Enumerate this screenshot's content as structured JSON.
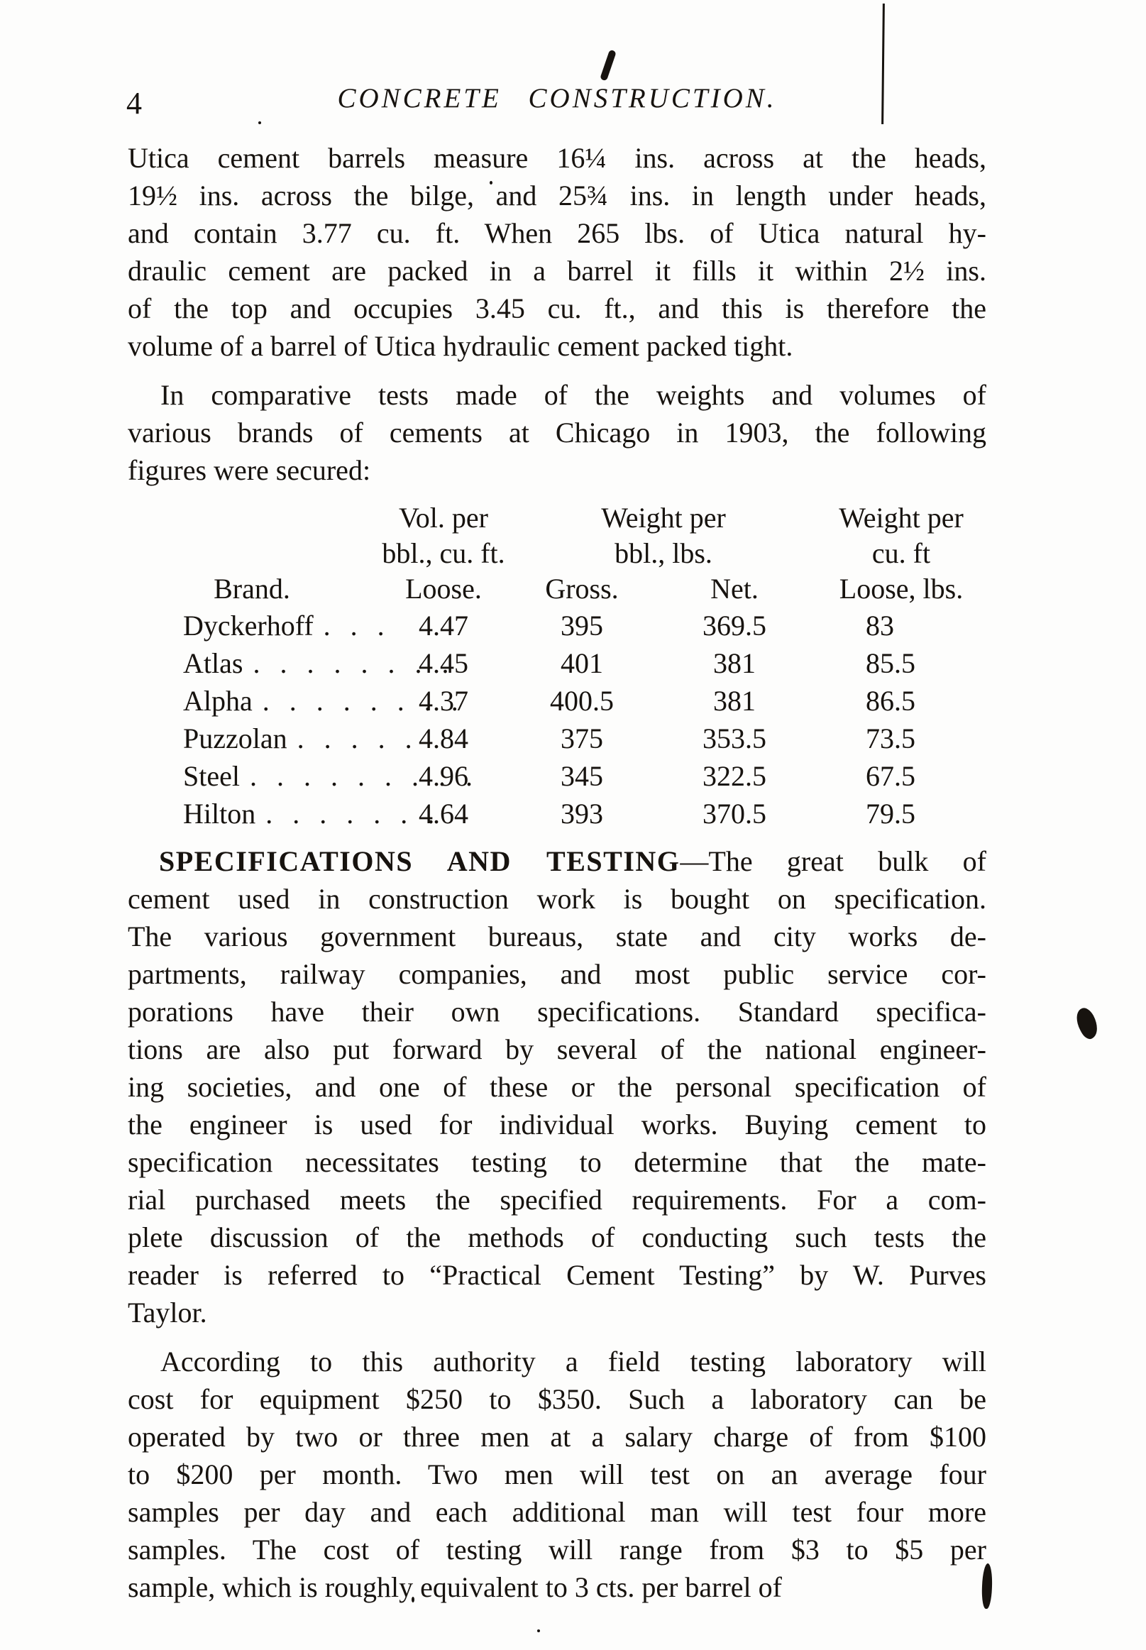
{
  "page": {
    "number": "4",
    "header": "CONCRETE CONSTRUCTION."
  },
  "content": {
    "para_utica_lines": [
      "Utica cement barrels measure 16¼ ins. across at the heads,",
      "19½ ins. across the bilge, and 25¾ ins. in length under heads,",
      "and contain 3.77 cu. ft.  When 265 lbs. of Utica natural hy-",
      "draulic cement are packed in a barrel it fills it within 2½ ins.",
      "of the top and occupies 3.45 cu. ft., and this is therefore the",
      "volume of a barrel of Utica hydraulic cement packed tight."
    ],
    "para_tests_lines": [
      "In comparative tests made of the weights and volumes of",
      "various brands of cements at Chicago in 1903, the following",
      "figures were secured:"
    ],
    "spec_heading": "SPECIFICATIONS AND TESTING",
    "spec_first_line_rest": "—The great bulk of",
    "para_spec_lines": [
      "cement used in construction work is bought on specification.",
      "The various government bureaus, state and city works de-",
      "partments, railway companies, and most public service cor-",
      "porations have their own specifications.  Standard specifica-",
      "tions are also put forward by several of the national engineer-",
      "ing societies, and one of these or the personal specification of",
      "the engineer is used for individual works.  Buying cement to",
      "specification necessitates testing to determine that the mate-",
      "rial purchased meets the specified requirements.  For a com-",
      "plete discussion of the methods of conducting such tests the",
      "reader is referred to “Practical Cement Testing” by W. Purves",
      "Taylor."
    ],
    "para_authority_lines": [
      "According to this authority a field testing laboratory will",
      "cost for equipment $250 to $350.  Such a laboratory can be",
      "operated by two or three men at a salary charge of from $100",
      "to $200 per month.  Two men will test on an average four",
      "samples per day and each additional man will test four more",
      "samples.  The cost of testing will range from $3 to $5 per",
      "sample, which is roughly equivalent to 3 cts. per barrel of"
    ]
  },
  "table": {
    "group_headers": {
      "vol_line1": "Vol. per",
      "vol_line2": "bbl., cu. ft.",
      "wt_bbl_line1": "Weight per",
      "wt_bbl_line2": "bbl., lbs.",
      "wt_cuft_line1": "Weight per",
      "wt_cuft_line2": "cu. ft"
    },
    "col_headers": {
      "brand": "Brand.",
      "loose": "Loose.",
      "gross": "Gross.",
      "net": "Net.",
      "loose_lbs": "Loose, lbs."
    },
    "rows": [
      {
        "brand": "Dyckerhoff",
        "leader": ". . .",
        "loose": "4.47",
        "gross": "395",
        "net": "369.5",
        "loose_lbs": "83"
      },
      {
        "brand": "Atlas",
        "leader": ". . . . . . . .",
        "loose": "4.45",
        "gross": "401",
        "net": "381",
        "loose_lbs": "85.5"
      },
      {
        "brand": "Alpha",
        "leader": ". . . . . . . .",
        "loose": "4.37",
        "gross": "400.5",
        "net": "381",
        "loose_lbs": "86.5"
      },
      {
        "brand": "Puzzolan",
        "leader": ". . . . .",
        "loose": "4.84",
        "gross": "375",
        "net": "353.5",
        "loose_lbs": "73.5"
      },
      {
        "brand": "Steel",
        "leader": ". . . . . . . . .",
        "loose": "4.96",
        "gross": "345",
        "net": "322.5",
        "loose_lbs": "67.5"
      },
      {
        "brand": "Hilton",
        "leader": ". . . . . . .",
        "loose": "4.64",
        "gross": "393",
        "net": "370.5",
        "loose_lbs": "79.5"
      }
    ]
  },
  "ink": {
    "ink_color": "#17130f",
    "paper_color": "#fdfdfc"
  }
}
